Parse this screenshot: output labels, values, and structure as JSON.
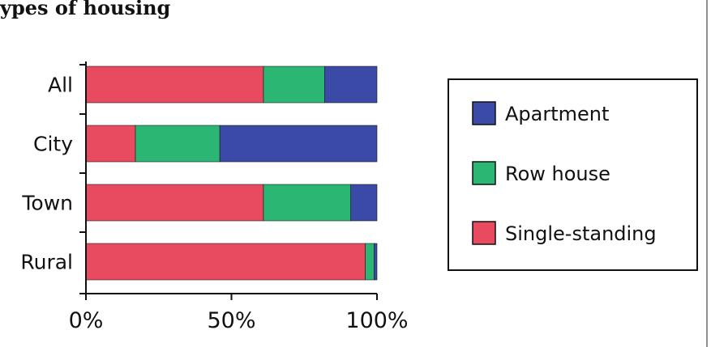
{
  "chart_data": {
    "type": "bar",
    "orientation": "horizontal",
    "stacked": true,
    "percent_scale": true,
    "title": "ypes of housing",
    "categories": [
      "All",
      "City",
      "Town",
      "Rural"
    ],
    "series": [
      {
        "name": "Single-standing",
        "values": [
          61,
          17,
          61,
          96
        ],
        "color": "#e84a5f"
      },
      {
        "name": "Row house",
        "values": [
          21,
          29,
          30,
          3
        ],
        "color": "#2bb673"
      },
      {
        "name": "Apartment",
        "values": [
          18,
          54,
          9,
          1
        ],
        "color": "#3a4aa6"
      }
    ],
    "legend_order": [
      "Apartment",
      "Row house",
      "Single-standing"
    ],
    "xlim": [
      0,
      100
    ],
    "xticks": [
      "0%",
      "50%",
      "100%"
    ],
    "xlabel": "",
    "ylabel": "",
    "grid": false,
    "legend_position": "right"
  }
}
